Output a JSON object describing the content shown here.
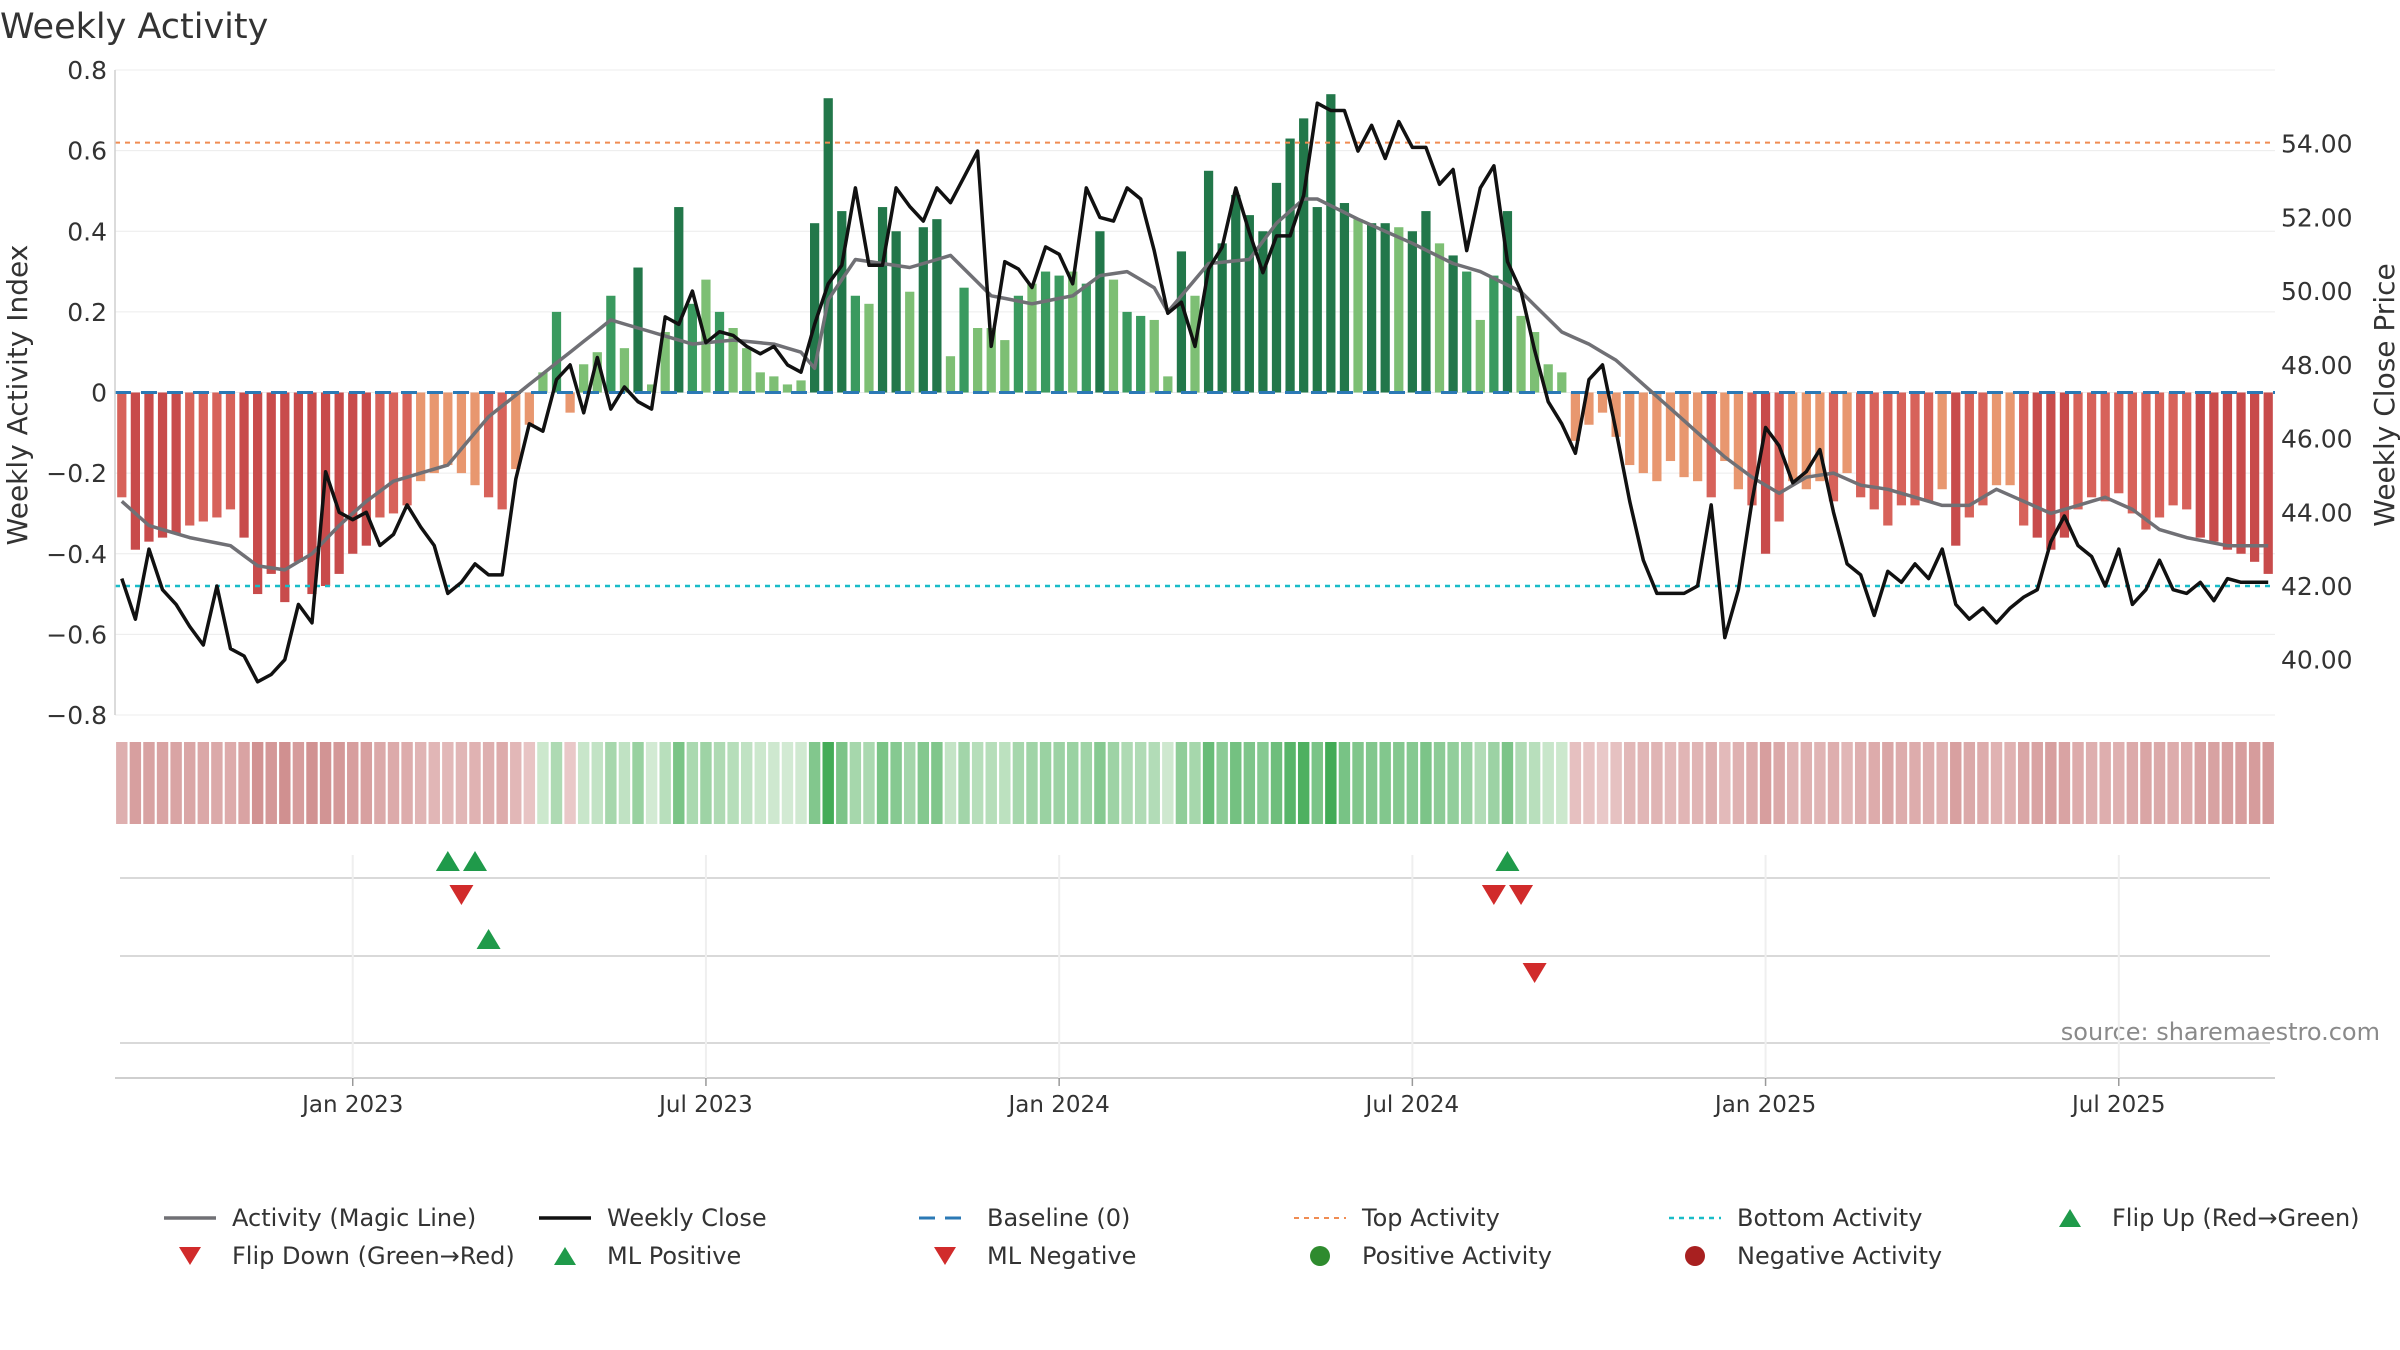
{
  "chart_data": {
    "type": "bar",
    "title": "Weekly Activity",
    "ylabel_left": "Weekly Activity Index",
    "ylabel_right": "Weekly Close Price",
    "source": "source: sharemaestro.com",
    "left_axis": {
      "ylim": [
        -0.8,
        0.8
      ],
      "ticks": [
        0.8,
        0.6,
        0.4,
        0.2,
        0,
        -0.2,
        -0.4,
        -0.6,
        -0.8
      ],
      "tick_labels": [
        "0.8",
        "0.6",
        "0.4",
        "0.2",
        "0",
        "−0.2",
        "−0.4",
        "−0.6",
        "−0.8"
      ]
    },
    "right_axis": {
      "ylim": [
        38.5,
        56.0
      ],
      "ticks": [
        54,
        52,
        50,
        48,
        46,
        44,
        42,
        40
      ],
      "tick_labels": [
        "54.00",
        "52.00",
        "50.00",
        "48.00",
        "46.00",
        "44.00",
        "42.00",
        "40.00"
      ]
    },
    "x_axis": {
      "start_date": "2022-09-05",
      "ticks": [
        {
          "label": "Jan 2023",
          "week": 17
        },
        {
          "label": "Jul 2023",
          "week": 43
        },
        {
          "label": "Jan 2024",
          "week": 69
        },
        {
          "label": "Jul 2024",
          "week": 95
        },
        {
          "label": "Jan 2025",
          "week": 121
        },
        {
          "label": "Jul 2025",
          "week": 147
        }
      ]
    },
    "reference_lines": {
      "baseline": 0,
      "top_activity": 0.62,
      "bottom_activity": -0.48
    },
    "grid": true,
    "legend_position": "bottom",
    "series": [
      {
        "name": "Activity (Magic Line)",
        "kind": "line",
        "color": "#707075",
        "anchors": [
          [
            0,
            -0.27
          ],
          [
            2,
            -0.33
          ],
          [
            5,
            -0.36
          ],
          [
            8,
            -0.38
          ],
          [
            10,
            -0.43
          ],
          [
            12,
            -0.44
          ],
          [
            14,
            -0.4
          ],
          [
            16,
            -0.33
          ],
          [
            18,
            -0.27
          ],
          [
            20,
            -0.22
          ],
          [
            24,
            -0.18
          ],
          [
            27,
            -0.06
          ],
          [
            30,
            0.02
          ],
          [
            33,
            0.1
          ],
          [
            36,
            0.18
          ],
          [
            39,
            0.15
          ],
          [
            42,
            0.12
          ],
          [
            45,
            0.13
          ],
          [
            48,
            0.12
          ],
          [
            50,
            0.1
          ],
          [
            51,
            0.06
          ],
          [
            52,
            0.23
          ],
          [
            54,
            0.33
          ],
          [
            58,
            0.31
          ],
          [
            61,
            0.34
          ],
          [
            64,
            0.24
          ],
          [
            67,
            0.22
          ],
          [
            70,
            0.24
          ],
          [
            72,
            0.29
          ],
          [
            74,
            0.3
          ],
          [
            76,
            0.26
          ],
          [
            77,
            0.2
          ],
          [
            80,
            0.32
          ],
          [
            83,
            0.33
          ],
          [
            85,
            0.42
          ],
          [
            87,
            0.48
          ],
          [
            88,
            0.48
          ],
          [
            91,
            0.43
          ],
          [
            95,
            0.37
          ],
          [
            98,
            0.32
          ],
          [
            100,
            0.3
          ],
          [
            103,
            0.25
          ],
          [
            106,
            0.15
          ],
          [
            108,
            0.12
          ],
          [
            110,
            0.08
          ],
          [
            112,
            0.02
          ],
          [
            114,
            -0.04
          ],
          [
            116,
            -0.1
          ],
          [
            118,
            -0.16
          ],
          [
            120,
            -0.21
          ],
          [
            122,
            -0.25
          ],
          [
            124,
            -0.21
          ],
          [
            126,
            -0.2
          ],
          [
            128,
            -0.23
          ],
          [
            130,
            -0.24
          ],
          [
            132,
            -0.26
          ],
          [
            134,
            -0.28
          ],
          [
            136,
            -0.28
          ],
          [
            138,
            -0.24
          ],
          [
            140,
            -0.27
          ],
          [
            142,
            -0.3
          ],
          [
            144,
            -0.28
          ],
          [
            146,
            -0.26
          ],
          [
            148,
            -0.29
          ],
          [
            150,
            -0.34
          ],
          [
            152,
            -0.36
          ],
          [
            155,
            -0.38
          ]
        ]
      },
      {
        "name": "Weekly Close",
        "kind": "line",
        "color": "#111111",
        "anchors": [
          [
            0,
            42.2
          ],
          [
            1,
            41.1
          ],
          [
            2,
            43.0
          ],
          [
            3,
            41.9
          ],
          [
            4,
            41.5
          ],
          [
            5,
            40.9
          ],
          [
            6,
            40.4
          ],
          [
            7,
            42.0
          ],
          [
            8,
            40.3
          ],
          [
            9,
            40.1
          ],
          [
            10,
            39.4
          ],
          [
            11,
            39.6
          ],
          [
            12,
            40.0
          ],
          [
            13,
            41.5
          ],
          [
            14,
            41.0
          ],
          [
            15,
            45.1
          ],
          [
            16,
            44.0
          ],
          [
            17,
            43.8
          ],
          [
            18,
            44.0
          ],
          [
            19,
            43.1
          ],
          [
            20,
            43.4
          ],
          [
            21,
            44.2
          ],
          [
            22,
            43.6
          ],
          [
            23,
            43.1
          ],
          [
            24,
            41.8
          ],
          [
            25,
            42.1
          ],
          [
            26,
            42.6
          ],
          [
            27,
            42.3
          ],
          [
            28,
            42.3
          ],
          [
            29,
            44.9
          ],
          [
            30,
            46.4
          ],
          [
            31,
            46.2
          ],
          [
            32,
            47.6
          ],
          [
            33,
            48.0
          ],
          [
            34,
            46.7
          ],
          [
            35,
            48.2
          ],
          [
            36,
            46.8
          ],
          [
            37,
            47.4
          ],
          [
            38,
            47.0
          ],
          [
            39,
            46.8
          ],
          [
            40,
            49.3
          ],
          [
            41,
            49.1
          ],
          [
            42,
            50.0
          ],
          [
            43,
            48.6
          ],
          [
            44,
            48.9
          ],
          [
            45,
            48.8
          ],
          [
            46,
            48.5
          ],
          [
            47,
            48.3
          ],
          [
            48,
            48.5
          ],
          [
            49,
            48.0
          ],
          [
            50,
            47.8
          ],
          [
            51,
            49.1
          ],
          [
            52,
            50.2
          ],
          [
            53,
            50.7
          ],
          [
            54,
            52.8
          ],
          [
            55,
            50.7
          ],
          [
            56,
            50.7
          ],
          [
            57,
            52.8
          ],
          [
            58,
            52.3
          ],
          [
            59,
            51.9
          ],
          [
            60,
            52.8
          ],
          [
            61,
            52.4
          ],
          [
            62,
            53.1
          ],
          [
            63,
            53.8
          ],
          [
            64,
            48.5
          ],
          [
            65,
            50.8
          ],
          [
            66,
            50.6
          ],
          [
            67,
            50.1
          ],
          [
            68,
            51.2
          ],
          [
            69,
            51.0
          ],
          [
            70,
            50.2
          ],
          [
            71,
            52.8
          ],
          [
            72,
            52.0
          ],
          [
            73,
            51.9
          ],
          [
            74,
            52.8
          ],
          [
            75,
            52.5
          ],
          [
            76,
            51.1
          ],
          [
            77,
            49.4
          ],
          [
            78,
            49.7
          ],
          [
            79,
            48.5
          ],
          [
            80,
            50.6
          ],
          [
            81,
            51.2
          ],
          [
            82,
            52.8
          ],
          [
            83,
            51.6
          ],
          [
            84,
            50.5
          ],
          [
            85,
            51.5
          ],
          [
            86,
            51.5
          ],
          [
            87,
            52.6
          ],
          [
            88,
            55.1
          ],
          [
            89,
            54.9
          ],
          [
            90,
            54.9
          ],
          [
            91,
            53.8
          ],
          [
            92,
            54.5
          ],
          [
            93,
            53.6
          ],
          [
            94,
            54.6
          ],
          [
            95,
            53.9
          ],
          [
            96,
            53.9
          ],
          [
            97,
            52.9
          ],
          [
            98,
            53.3
          ],
          [
            99,
            51.1
          ],
          [
            100,
            52.8
          ],
          [
            101,
            53.4
          ],
          [
            102,
            50.8
          ],
          [
            103,
            50.0
          ],
          [
            104,
            48.4
          ],
          [
            105,
            47.0
          ],
          [
            106,
            46.4
          ],
          [
            107,
            45.6
          ],
          [
            108,
            47.6
          ],
          [
            109,
            48.0
          ],
          [
            110,
            46.2
          ],
          [
            111,
            44.3
          ],
          [
            112,
            42.7
          ],
          [
            113,
            41.8
          ],
          [
            114,
            41.8
          ],
          [
            115,
            41.8
          ],
          [
            116,
            42.0
          ],
          [
            117,
            44.2
          ],
          [
            118,
            40.6
          ],
          [
            119,
            41.9
          ],
          [
            120,
            44.3
          ],
          [
            121,
            46.3
          ],
          [
            122,
            45.8
          ],
          [
            123,
            44.8
          ],
          [
            124,
            45.1
          ],
          [
            125,
            45.7
          ],
          [
            126,
            44.0
          ],
          [
            127,
            42.6
          ],
          [
            128,
            42.3
          ],
          [
            129,
            41.2
          ],
          [
            130,
            42.4
          ],
          [
            131,
            42.1
          ],
          [
            132,
            42.6
          ],
          [
            133,
            42.2
          ],
          [
            134,
            43.0
          ],
          [
            135,
            41.5
          ],
          [
            136,
            41.1
          ],
          [
            137,
            41.4
          ],
          [
            138,
            41.0
          ],
          [
            139,
            41.4
          ],
          [
            140,
            41.7
          ],
          [
            141,
            41.9
          ],
          [
            142,
            43.2
          ],
          [
            143,
            43.9
          ],
          [
            144,
            43.1
          ],
          [
            145,
            42.8
          ],
          [
            146,
            42.0
          ],
          [
            147,
            43.0
          ],
          [
            148,
            41.5
          ],
          [
            149,
            41.9
          ],
          [
            150,
            42.7
          ],
          [
            151,
            41.9
          ],
          [
            152,
            41.8
          ],
          [
            153,
            42.1
          ],
          [
            154,
            41.6
          ],
          [
            155,
            42.2
          ],
          [
            156,
            42.1
          ]
        ]
      }
    ],
    "bars": {
      "name": "Activity Index",
      "values": [
        -0.26,
        -0.39,
        -0.37,
        -0.36,
        -0.35,
        -0.33,
        -0.32,
        -0.31,
        -0.29,
        -0.36,
        -0.5,
        -0.45,
        -0.52,
        -0.42,
        -0.5,
        -0.48,
        -0.45,
        -0.4,
        -0.38,
        -0.31,
        -0.3,
        -0.28,
        -0.22,
        -0.2,
        -0.18,
        -0.2,
        -0.23,
        -0.26,
        -0.29,
        -0.19,
        -0.08,
        0.05,
        0.2,
        -0.05,
        0.07,
        0.1,
        0.24,
        0.11,
        0.31,
        0.02,
        0.15,
        0.46,
        0.22,
        0.28,
        0.2,
        0.16,
        0.11,
        0.05,
        0.04,
        0.02,
        0.03,
        0.42,
        0.73,
        0.45,
        0.24,
        0.22,
        0.46,
        0.4,
        0.25,
        0.41,
        0.43,
        0.09,
        0.26,
        0.16,
        0.16,
        0.13,
        0.24,
        0.27,
        0.3,
        0.29,
        0.3,
        0.27,
        0.4,
        0.28,
        0.2,
        0.19,
        0.18,
        0.04,
        0.35,
        0.24,
        0.55,
        0.37,
        0.49,
        0.44,
        0.4,
        0.52,
        0.63,
        0.68,
        0.46,
        0.74,
        0.47,
        0.43,
        0.42,
        0.42,
        0.41,
        0.4,
        0.45,
        0.37,
        0.34,
        0.3,
        0.18,
        0.29,
        0.45,
        0.19,
        0.15,
        0.07,
        0.05,
        -0.12,
        -0.08,
        -0.05,
        -0.11,
        -0.18,
        -0.2,
        -0.22,
        -0.17,
        -0.21,
        -0.22,
        -0.26,
        -0.17,
        -0.24,
        -0.28,
        -0.4,
        -0.32,
        -0.22,
        -0.24,
        -0.22,
        -0.27,
        -0.2,
        -0.26,
        -0.29,
        -0.33,
        -0.28,
        -0.28,
        -0.27,
        -0.24,
        -0.38,
        -0.31,
        -0.28,
        -0.23,
        -0.23,
        -0.33,
        -0.36,
        -0.39,
        -0.36,
        -0.29,
        -0.26,
        -0.27,
        -0.25,
        -0.3,
        -0.34,
        -0.31,
        -0.28,
        -0.29,
        -0.36,
        -0.37,
        -0.39,
        -0.4,
        -0.42,
        -0.45
      ]
    },
    "flip_markers": {
      "flip_up": [
        24,
        26,
        102
      ],
      "flip_down": [
        25,
        101,
        103
      ],
      "ml_positive": [
        27
      ],
      "ml_negative": [
        104
      ]
    },
    "colors": {
      "neg_dark": "#c84b4b",
      "neg_mid": "#d7625a",
      "neg_light": "#e8976f",
      "pos_dark": "#22774a",
      "pos_mid": "#3a9a5f",
      "pos_light": "#7dbf74",
      "baseline": "#2b79b5",
      "top_line": "#f08c52",
      "bottom_line": "#19bcc7",
      "up_marker": "#1f9a4a",
      "down_marker": "#d12b2b"
    },
    "legend": [
      {
        "label": "Activity (Magic Line)",
        "glyph": "line-gray"
      },
      {
        "label": "Weekly Close",
        "glyph": "line-black"
      },
      {
        "label": "Baseline (0)",
        "glyph": "dash-blue"
      },
      {
        "label": "Top Activity",
        "glyph": "dot-orange"
      },
      {
        "label": "Bottom Activity",
        "glyph": "dot-cyan"
      },
      {
        "label": "Flip Up (Red→Green)",
        "glyph": "tri-up-green"
      },
      {
        "label": "Flip Down (Green→Red)",
        "glyph": "tri-down-red"
      },
      {
        "label": "ML Positive",
        "glyph": "tri-up-green"
      },
      {
        "label": "ML Negative",
        "glyph": "tri-down-red"
      },
      {
        "label": "Positive Activity",
        "glyph": "circle-green"
      },
      {
        "label": "Negative Activity",
        "glyph": "circle-red"
      }
    ]
  }
}
